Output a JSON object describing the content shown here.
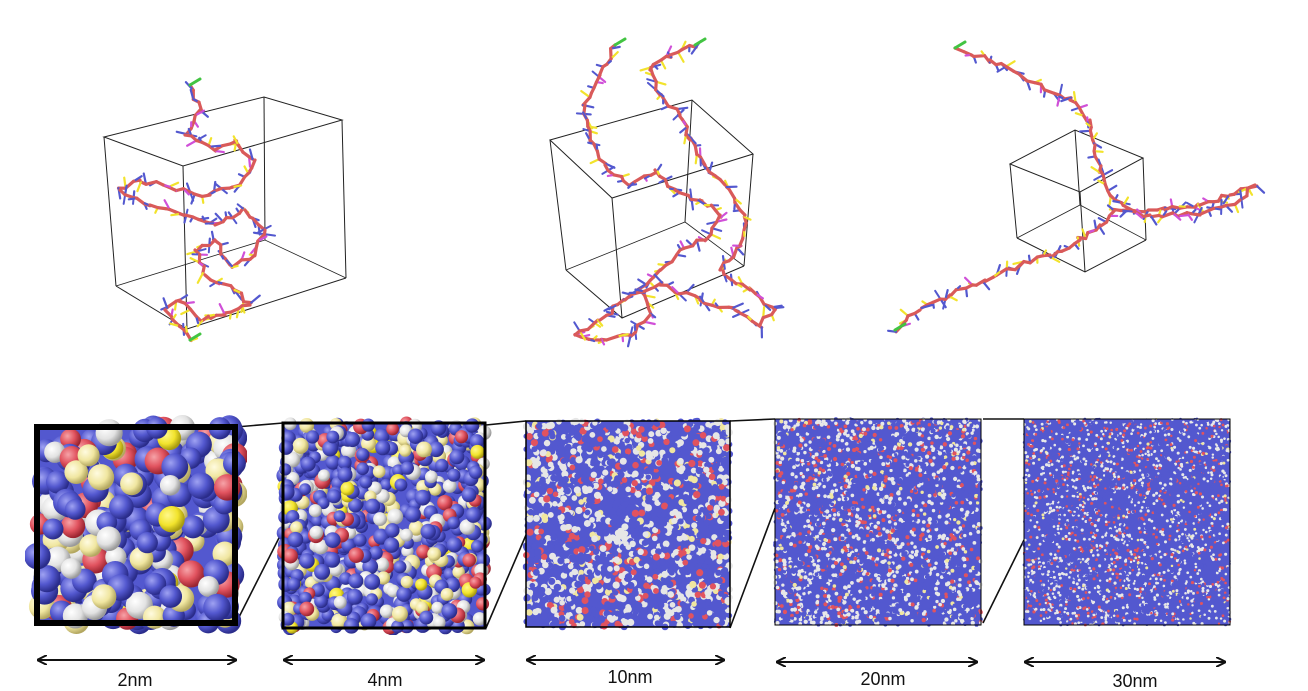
{
  "figure": {
    "scale_bars": [
      {
        "label": "2nm"
      },
      {
        "label": "4nm"
      },
      {
        "label": "10nm"
      },
      {
        "label": "20nm"
      },
      {
        "label": "30nm"
      }
    ],
    "atom_colors": {
      "blue": "#5358cf",
      "red": "#e1535f",
      "white": "#e6e6e6",
      "yellow": "#f0e6a0",
      "bright_yellow": "#f2e32c",
      "green": "#42c442",
      "magenta": "#d050d8"
    },
    "bond_color": "#d95a5a",
    "box_edge_color": "#222222"
  }
}
